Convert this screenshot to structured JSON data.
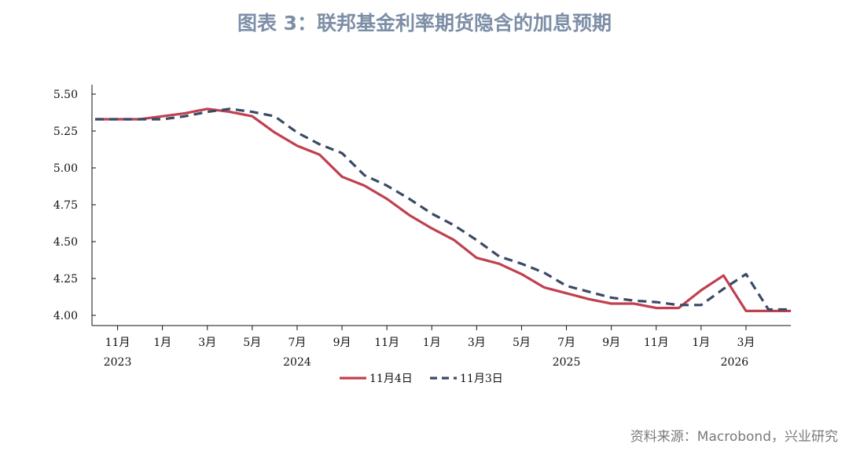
{
  "title": "图表 3：联邦基金利率期货隐含的加息预期",
  "source": "资料来源：Macrobond，兴业研究",
  "colors": {
    "series_1": "#c0404f",
    "series_2": "#3a4a66",
    "title": "#7d8fa7",
    "axis": "#111111"
  },
  "chart_data": {
    "type": "line",
    "ylim": [
      4.0,
      5.5
    ],
    "y_ticks": [
      "5.50",
      "5.25",
      "5.00",
      "4.75",
      "4.50",
      "4.25",
      "4.00"
    ],
    "y_tick_values": [
      5.5,
      5.25,
      5.0,
      4.75,
      4.5,
      4.25,
      4.0
    ],
    "x_month_labels": [
      "11月",
      "1月",
      "3月",
      "5月",
      "7月",
      "9月",
      "11月",
      "1月",
      "3月",
      "5月",
      "7月",
      "9月",
      "11月",
      "1月",
      "3月"
    ],
    "x_year_labels": [
      "2023",
      "2024",
      "2025",
      "2026"
    ],
    "legend_position": "bottom",
    "grid": false,
    "series": [
      {
        "name": "11月4日",
        "style": "solid",
        "x": [
          "2023-10",
          "2023-11",
          "2023-12",
          "2024-01",
          "2024-02",
          "2024-03",
          "2024-04",
          "2024-05",
          "2024-06",
          "2024-07",
          "2024-08",
          "2024-09",
          "2024-10",
          "2024-11",
          "2024-12",
          "2025-01",
          "2025-02",
          "2025-03",
          "2025-04",
          "2025-05",
          "2025-06",
          "2025-07",
          "2025-08",
          "2025-09",
          "2025-10",
          "2025-11",
          "2025-12",
          "2026-01",
          "2026-02",
          "2026-03",
          "2026-04",
          "2026-05"
        ],
        "values": [
          5.33,
          5.33,
          5.33,
          5.35,
          5.37,
          5.4,
          5.38,
          5.35,
          5.24,
          5.15,
          5.09,
          4.94,
          4.88,
          4.79,
          4.68,
          4.59,
          4.51,
          4.39,
          4.35,
          4.28,
          4.19,
          4.15,
          4.11,
          4.08,
          4.08,
          4.05,
          4.05,
          4.17,
          4.27,
          4.03,
          4.03,
          4.03
        ]
      },
      {
        "name": "11月3日",
        "style": "dashed",
        "x": [
          "2023-10",
          "2023-11",
          "2023-12",
          "2024-01",
          "2024-02",
          "2024-03",
          "2024-04",
          "2024-05",
          "2024-06",
          "2024-07",
          "2024-08",
          "2024-09",
          "2024-10",
          "2024-11",
          "2024-12",
          "2025-01",
          "2025-02",
          "2025-03",
          "2025-04",
          "2025-05",
          "2025-06",
          "2025-07",
          "2025-08",
          "2025-09",
          "2025-10",
          "2025-11",
          "2025-12",
          "2026-01",
          "2026-02",
          "2026-03",
          "2026-04",
          "2026-05"
        ],
        "values": [
          5.33,
          5.33,
          5.33,
          5.33,
          5.35,
          5.38,
          5.4,
          5.38,
          5.35,
          5.24,
          5.16,
          5.1,
          4.95,
          4.88,
          4.79,
          4.69,
          4.61,
          4.51,
          4.4,
          4.35,
          4.29,
          4.2,
          4.16,
          4.12,
          4.1,
          4.09,
          4.07,
          4.07,
          4.18,
          4.28,
          4.04,
          4.04
        ]
      }
    ]
  }
}
